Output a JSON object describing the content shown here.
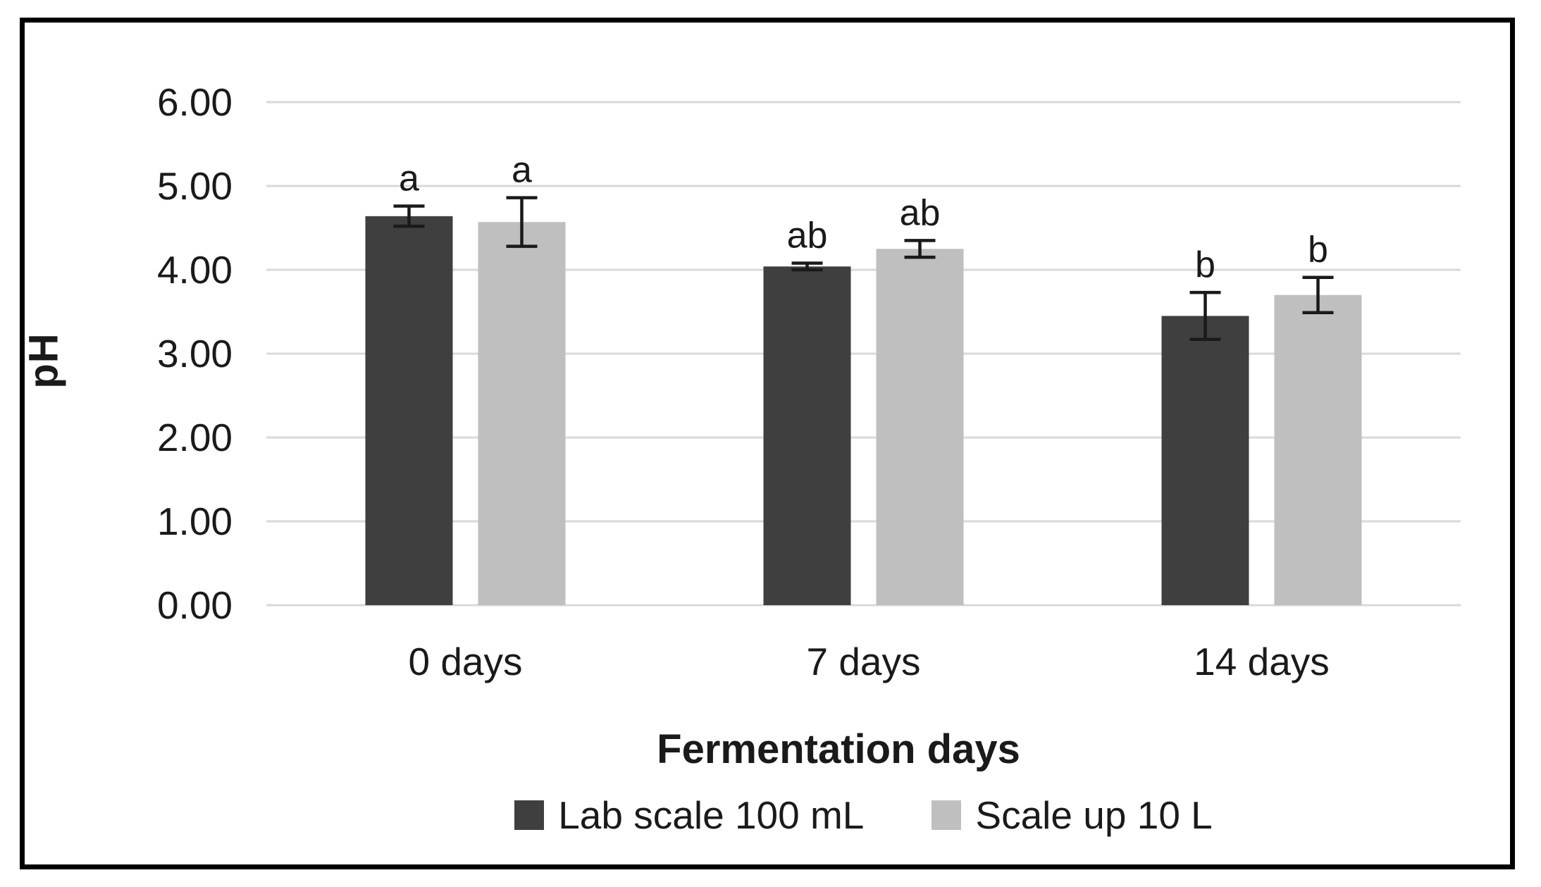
{
  "chart_data": {
    "type": "bar",
    "title": "",
    "xlabel": "Fermentation days",
    "ylabel": "pH",
    "ylim": [
      0,
      6
    ],
    "ytick_step": 1.0,
    "ytick_labels": [
      "0.00",
      "1.00",
      "2.00",
      "3.00",
      "4.00",
      "5.00",
      "6.00"
    ],
    "grid": true,
    "legend_position": "bottom-center",
    "categories": [
      "0 days",
      "7 days",
      "14 days"
    ],
    "series": [
      {
        "name": "Lab scale 100 mL",
        "color": "#3f3f3f",
        "values": [
          4.64,
          4.04,
          3.45
        ],
        "errors": [
          0.12,
          0.04,
          0.28
        ],
        "sig_letters": [
          "a",
          "ab",
          "b"
        ]
      },
      {
        "name": "Scale up 10 L",
        "color": "#bfbfbf",
        "values": [
          4.57,
          4.25,
          3.7
        ],
        "errors": [
          0.29,
          0.1,
          0.21
        ],
        "sig_letters": [
          "a",
          "ab",
          "b"
        ]
      }
    ],
    "colors": {
      "grid": "#d9d9d9",
      "axis_text": "#1a1a1a",
      "error_bar": "#1a1a1a",
      "sig_letter_text": "#1a1a1a",
      "frame_border": "#000000",
      "background": "#ffffff"
    }
  }
}
